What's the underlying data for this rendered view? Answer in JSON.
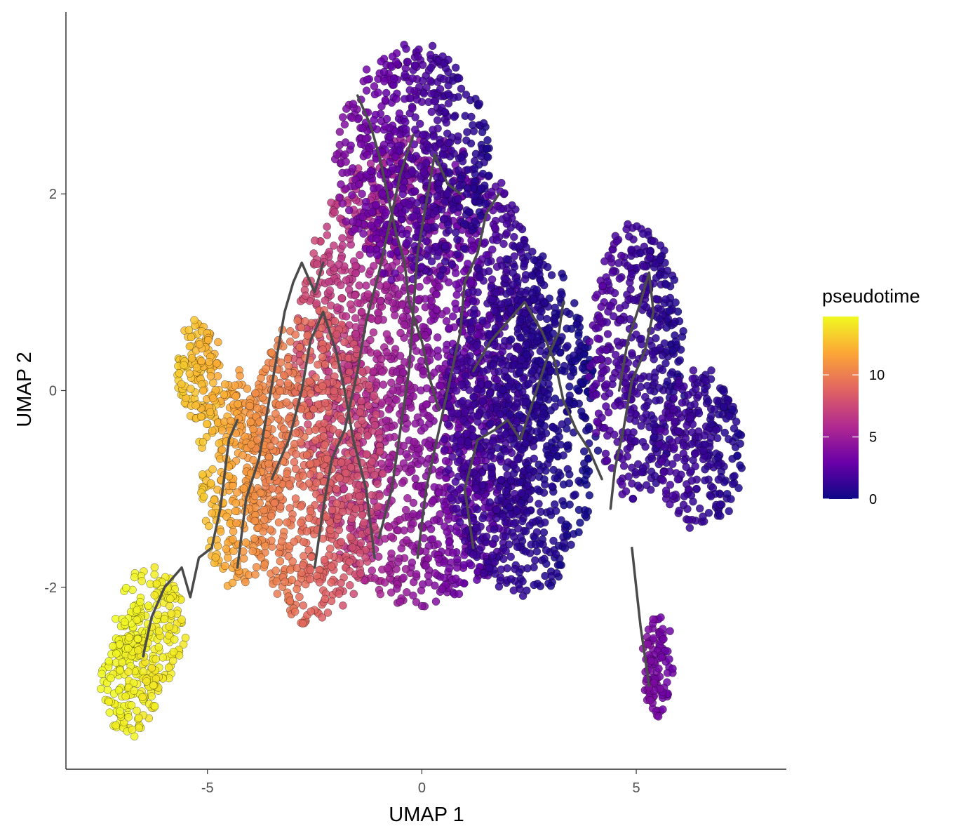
{
  "chart_data": {
    "type": "scatter",
    "title": "",
    "xlabel": "UMAP 1",
    "ylabel": "UMAP 2",
    "xlim": [
      -8.3,
      8.5
    ],
    "ylim": [
      -3.85,
      3.85
    ],
    "x_ticks": [
      -5,
      0,
      5
    ],
    "x_tick_labels": [
      "-5",
      "0",
      "5"
    ],
    "y_ticks": [
      -2,
      0,
      2
    ],
    "y_tick_labels": [
      "-2",
      "0",
      "2"
    ],
    "grid": false,
    "legend": {
      "title": "pseudotime",
      "placement": "right",
      "type": "colorbar",
      "range": [
        0,
        14.7
      ],
      "breaks": [
        0,
        5,
        10
      ],
      "break_labels": [
        "0",
        "5",
        "10"
      ],
      "palette": [
        "#0d0887",
        "#6a00a8",
        "#b12a90",
        "#e16462",
        "#fca636",
        "#f0f921"
      ]
    },
    "trajectory_color": "#4a4a4a",
    "point_outline_color": "#000000",
    "clusters": [
      {
        "cx": 0.0,
        "cy": 0.2,
        "rx": 3.0,
        "ry": 2.4,
        "pseudotime_low": 0.5,
        "pseudotime_high": 8
      },
      {
        "cx": -0.2,
        "cy": 2.3,
        "rx": 1.8,
        "ry": 1.2,
        "pseudotime_low": 0.5,
        "pseudotime_high": 4
      },
      {
        "cx": 2.3,
        "cy": -0.3,
        "rx": 1.8,
        "ry": 1.8,
        "pseudotime_low": 0,
        "pseudotime_high": 2
      },
      {
        "cx": 5.0,
        "cy": 0.3,
        "rx": 1.1,
        "ry": 1.4,
        "pseudotime_low": 0.5,
        "pseudotime_high": 2.5
      },
      {
        "cx": 6.5,
        "cy": -0.6,
        "rx": 1.0,
        "ry": 0.8,
        "pseudotime_low": 0.5,
        "pseudotime_high": 2
      },
      {
        "cx": -2.5,
        "cy": -0.8,
        "rx": 1.6,
        "ry": 1.6,
        "pseudotime_low": 7,
        "pseudotime_high": 11
      },
      {
        "cx": -4.3,
        "cy": -0.9,
        "rx": 0.9,
        "ry": 1.1,
        "pseudotime_low": 10,
        "pseudotime_high": 13
      },
      {
        "cx": -5.2,
        "cy": 0.2,
        "rx": 0.5,
        "ry": 0.5,
        "pseudotime_low": 12,
        "pseudotime_high": 13
      },
      {
        "cx": -6.3,
        "cy": -2.4,
        "rx": 0.8,
        "ry": 0.6,
        "pseudotime_low": 14,
        "pseudotime_high": 14.7
      },
      {
        "cx": -6.8,
        "cy": -3.0,
        "rx": 0.7,
        "ry": 0.5,
        "pseudotime_low": 14,
        "pseudotime_high": 14.7
      },
      {
        "cx": 5.5,
        "cy": -2.8,
        "rx": 0.35,
        "ry": 0.5,
        "pseudotime_low": 3,
        "pseudotime_high": 4
      }
    ],
    "trajectory_paths": [
      [
        [
          -6.5,
          -2.7
        ],
        [
          -6.3,
          -2.3
        ],
        [
          -6.0,
          -2.0
        ],
        [
          -5.6,
          -1.8
        ],
        [
          -5.4,
          -2.1
        ],
        [
          -5.2,
          -1.7
        ],
        [
          -4.9,
          -1.6
        ],
        [
          -4.7,
          -1.2
        ],
        [
          -4.5,
          -0.5
        ],
        [
          -4.3,
          -0.3
        ]
      ],
      [
        [
          -4.3,
          -1.8
        ],
        [
          -4.1,
          -1.1
        ],
        [
          -3.8,
          -0.7
        ],
        [
          -3.6,
          -0.2
        ],
        [
          -3.4,
          0.3
        ],
        [
          -3.2,
          0.8
        ],
        [
          -3.0,
          1.1
        ],
        [
          -2.8,
          1.3
        ],
        [
          -2.5,
          1.0
        ],
        [
          -2.3,
          1.3
        ]
      ],
      [
        [
          -3.5,
          -0.9
        ],
        [
          -3.1,
          -0.5
        ],
        [
          -2.8,
          0.0
        ],
        [
          -2.6,
          0.5
        ],
        [
          -2.3,
          0.8
        ],
        [
          -2.0,
          0.4
        ],
        [
          -1.8,
          0.0
        ],
        [
          -1.6,
          -0.5
        ],
        [
          -1.3,
          -1.0
        ],
        [
          -1.1,
          -1.7
        ]
      ],
      [
        [
          -2.5,
          -1.8
        ],
        [
          -2.3,
          -1.2
        ],
        [
          -2.1,
          -0.7
        ],
        [
          -1.8,
          -0.4
        ],
        [
          -1.5,
          0.2
        ],
        [
          -1.3,
          0.7
        ],
        [
          -1.0,
          1.2
        ],
        [
          -0.8,
          1.6
        ],
        [
          -0.5,
          2.2
        ],
        [
          -0.2,
          2.6
        ]
      ],
      [
        [
          -1.0,
          -1.5
        ],
        [
          -0.7,
          -1.0
        ],
        [
          -0.5,
          -0.4
        ],
        [
          -0.3,
          0.2
        ],
        [
          -0.2,
          0.8
        ],
        [
          -0.1,
          1.4
        ],
        [
          0.1,
          1.9
        ],
        [
          0.3,
          2.4
        ],
        [
          0.6,
          2.1
        ],
        [
          0.9,
          2.0
        ]
      ],
      [
        [
          -1.5,
          3.0
        ],
        [
          -1.2,
          2.7
        ],
        [
          -1.0,
          2.4
        ],
        [
          -0.8,
          2.0
        ],
        [
          -0.6,
          1.6
        ],
        [
          -0.4,
          1.3
        ],
        [
          -0.3,
          0.9
        ],
        [
          0.0,
          0.5
        ],
        [
          0.2,
          0.1
        ],
        [
          0.4,
          -0.2
        ]
      ],
      [
        [
          -0.1,
          -1.7
        ],
        [
          0.1,
          -1.0
        ],
        [
          0.3,
          -0.6
        ],
        [
          0.5,
          -0.2
        ],
        [
          0.7,
          0.2
        ],
        [
          0.9,
          0.6
        ],
        [
          1.0,
          1.1
        ],
        [
          1.3,
          1.4
        ],
        [
          1.5,
          1.8
        ],
        [
          1.8,
          2.0
        ]
      ],
      [
        [
          1.2,
          -1.6
        ],
        [
          1.0,
          -1.0
        ],
        [
          1.3,
          -0.5
        ],
        [
          1.7,
          -0.4
        ],
        [
          2.0,
          -0.3
        ],
        [
          2.3,
          -0.5
        ],
        [
          2.6,
          -0.1
        ],
        [
          2.9,
          0.3
        ],
        [
          3.2,
          0.6
        ],
        [
          3.3,
          0.9
        ]
      ],
      [
        [
          1.2,
          0.2
        ],
        [
          1.6,
          0.5
        ],
        [
          2.0,
          0.7
        ],
        [
          2.4,
          0.9
        ],
        [
          2.8,
          0.6
        ],
        [
          3.1,
          0.3
        ],
        [
          3.3,
          -0.1
        ],
        [
          3.6,
          -0.4
        ],
        [
          3.9,
          -0.6
        ],
        [
          4.2,
          -0.9
        ]
      ],
      [
        [
          4.6,
          0.0
        ],
        [
          4.8,
          0.5
        ],
        [
          5.1,
          0.9
        ],
        [
          5.3,
          1.2
        ],
        [
          5.4,
          0.8
        ],
        [
          5.2,
          0.4
        ],
        [
          4.9,
          0.1
        ],
        [
          4.7,
          -0.4
        ],
        [
          4.5,
          -0.8
        ],
        [
          4.4,
          -1.2
        ]
      ],
      [
        [
          4.9,
          -1.6
        ],
        [
          5.0,
          -2.0
        ],
        [
          5.1,
          -2.4
        ],
        [
          5.2,
          -2.7
        ],
        [
          5.3,
          -3.0
        ]
      ]
    ]
  }
}
